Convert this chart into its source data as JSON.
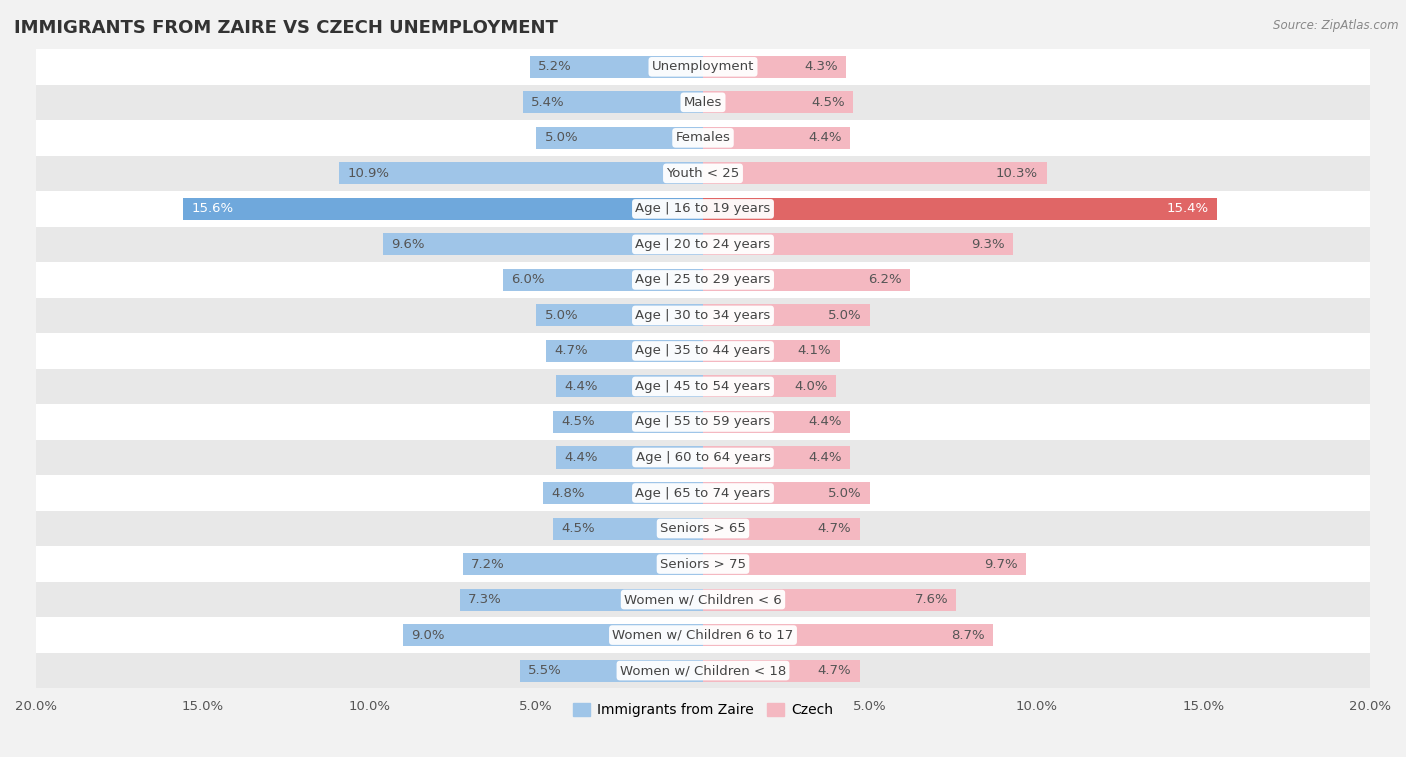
{
  "title": "IMMIGRANTS FROM ZAIRE VS CZECH UNEMPLOYMENT",
  "source": "Source: ZipAtlas.com",
  "categories": [
    "Unemployment",
    "Males",
    "Females",
    "Youth < 25",
    "Age | 16 to 19 years",
    "Age | 20 to 24 years",
    "Age | 25 to 29 years",
    "Age | 30 to 34 years",
    "Age | 35 to 44 years",
    "Age | 45 to 54 years",
    "Age | 55 to 59 years",
    "Age | 60 to 64 years",
    "Age | 65 to 74 years",
    "Seniors > 65",
    "Seniors > 75",
    "Women w/ Children < 6",
    "Women w/ Children 6 to 17",
    "Women w/ Children < 18"
  ],
  "zaire_values": [
    5.2,
    5.4,
    5.0,
    10.9,
    15.6,
    9.6,
    6.0,
    5.0,
    4.7,
    4.4,
    4.5,
    4.4,
    4.8,
    4.5,
    7.2,
    7.3,
    9.0,
    5.5
  ],
  "czech_values": [
    4.3,
    4.5,
    4.4,
    10.3,
    15.4,
    9.3,
    6.2,
    5.0,
    4.1,
    4.0,
    4.4,
    4.4,
    5.0,
    4.7,
    9.7,
    7.6,
    8.7,
    4.7
  ],
  "zaire_color": "#9fc5e8",
  "czech_color": "#f4b8c1",
  "zaire_highlight_color": "#6fa8dc",
  "czech_highlight_color": "#e06666",
  "background_color": "#f2f2f2",
  "row_color_light": "#ffffff",
  "row_color_dark": "#e8e8e8",
  "axis_max": 20.0,
  "bar_height": 0.62,
  "label_fontsize": 9.5,
  "title_fontsize": 13,
  "axis_label_fontsize": 9.5,
  "highlight_rows": [
    4
  ],
  "value_label_color_normal": "#555555",
  "value_label_color_highlight_zaire": "#ffffff",
  "value_label_color_highlight_czech": "#ffffff"
}
